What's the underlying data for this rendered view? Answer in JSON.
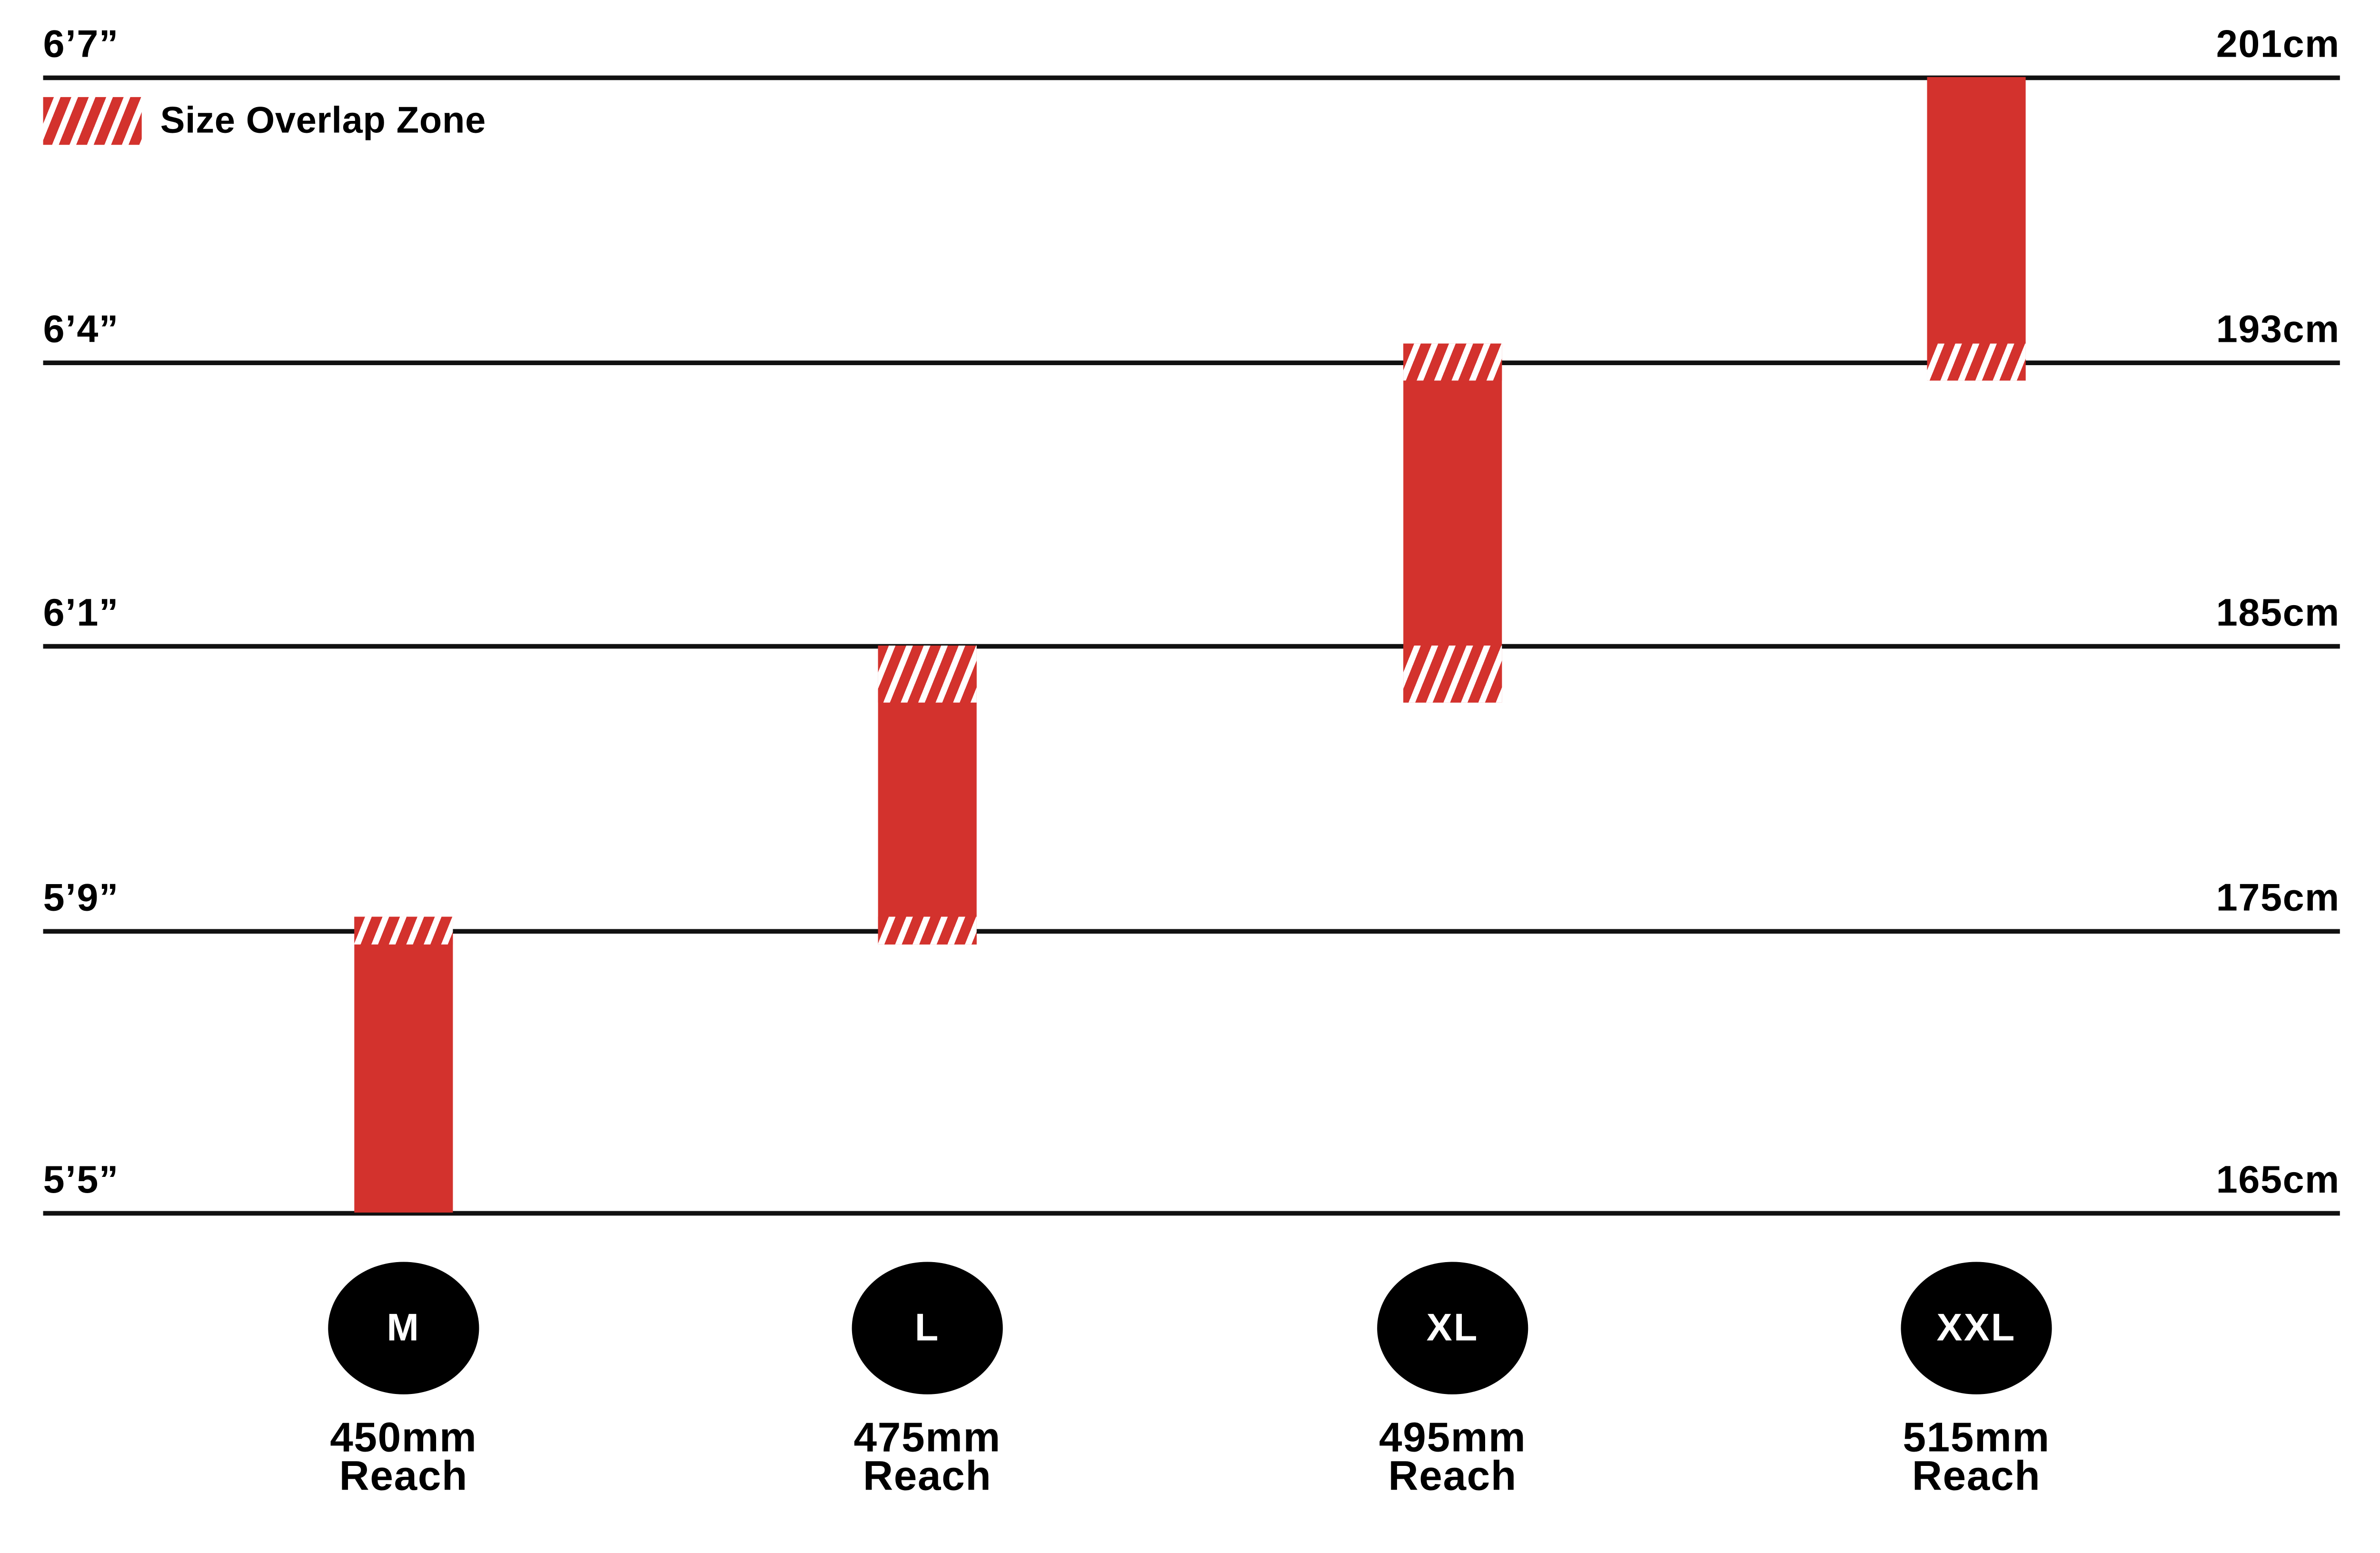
{
  "legend": {
    "swatch": "red-white-diagonal-hatch",
    "label": "Size Overlap Zone"
  },
  "axis": {
    "left_unit": "feet-inches",
    "right_unit": "centimeters",
    "rows": [
      {
        "imperial": "6’7”",
        "metric": "201cm",
        "cm": 201
      },
      {
        "imperial": "6’4”",
        "metric": "193cm",
        "cm": 193
      },
      {
        "imperial": "6’1”",
        "metric": "185cm",
        "cm": 185
      },
      {
        "imperial": "5’9”",
        "metric": "175cm",
        "cm": 175
      },
      {
        "imperial": "5’5”",
        "metric": "165cm",
        "cm": 165
      }
    ]
  },
  "sizes": [
    {
      "badge": "M",
      "reach_line1": "450mm",
      "reach_line2": "Reach"
    },
    {
      "badge": "L",
      "reach_line1": "475mm",
      "reach_line2": "Reach"
    },
    {
      "badge": "XL",
      "reach_line1": "495mm",
      "reach_line2": "Reach"
    },
    {
      "badge": "XXL",
      "reach_line1": "515mm",
      "reach_line2": "Reach"
    }
  ],
  "chart_data": {
    "type": "bar",
    "orientation": "vertical-range",
    "title": "",
    "categories": [
      "M",
      "L",
      "XL",
      "XXL"
    ],
    "y_axis": {
      "left_ticks": [
        "6’7”",
        "6’4”",
        "6’1”",
        "5’9”",
        "5’5”"
      ],
      "right_ticks": [
        "201cm",
        "193cm",
        "185cm",
        "175cm",
        "165cm"
      ],
      "tick_cm": [
        201,
        193,
        185,
        175,
        165
      ]
    },
    "bars": [
      {
        "size": "M",
        "reach_mm": 450,
        "height_range_cm": [
          165,
          175.5
        ],
        "overlap_top_cm": [
          174.5,
          175.5
        ],
        "overlap_bottom_cm": null
      },
      {
        "size": "L",
        "reach_mm": 475,
        "height_range_cm": [
          174.5,
          185
        ],
        "overlap_top_cm": [
          183,
          185
        ],
        "overlap_bottom_cm": [
          174.5,
          175.5
        ]
      },
      {
        "size": "XL",
        "reach_mm": 495,
        "height_range_cm": [
          183,
          193.5
        ],
        "overlap_top_cm": [
          192.5,
          193.5
        ],
        "overlap_bottom_cm": [
          183,
          185
        ]
      },
      {
        "size": "XXL",
        "reach_mm": 515,
        "height_range_cm": [
          192.5,
          201
        ],
        "overlap_top_cm": null,
        "overlap_bottom_cm": [
          192.5,
          193.5
        ]
      }
    ],
    "legend_entries": [
      "Size Overlap Zone"
    ],
    "grid": "horizontal-lines"
  },
  "colors": {
    "red": "#d3322d",
    "black": "#000000",
    "white": "#ffffff"
  }
}
